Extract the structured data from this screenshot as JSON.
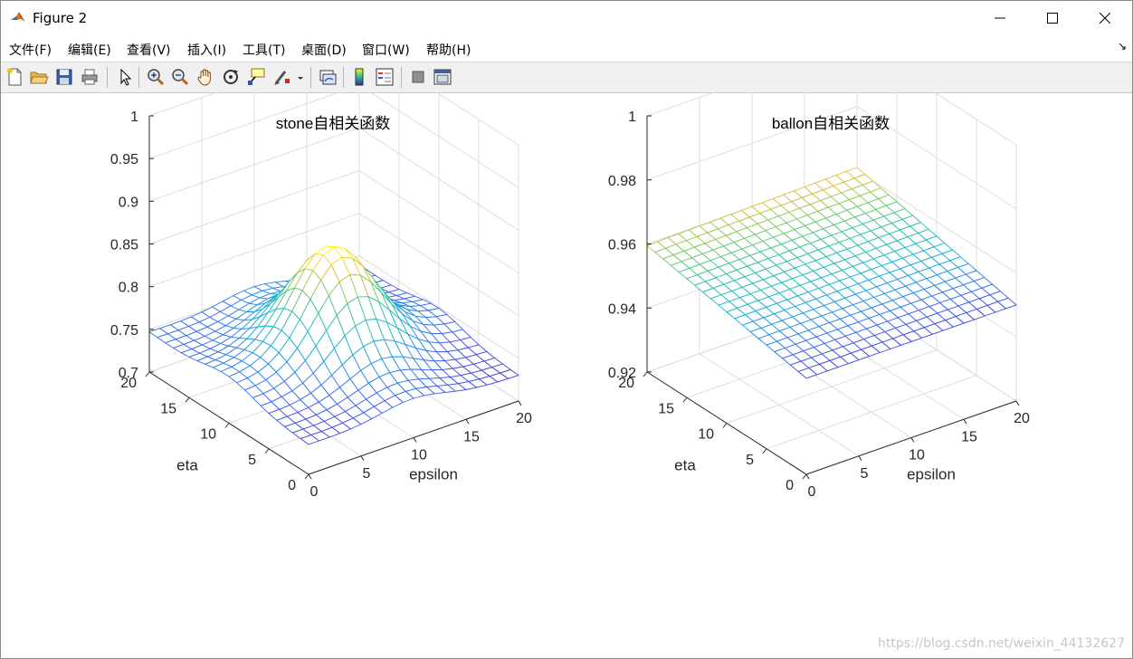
{
  "window": {
    "title": "Figure 2",
    "icon": "matlab-logo-icon",
    "controls": [
      "minimize-icon",
      "maximize-icon",
      "close-icon"
    ]
  },
  "menu": [
    "文件(F)",
    "编辑(E)",
    "查看(V)",
    "插入(I)",
    "工具(T)",
    "桌面(D)",
    "窗口(W)",
    "帮助(H)"
  ],
  "menu_dock_arrow": "↘",
  "toolbar": [
    "new-figure-icon",
    "open-file-icon",
    "save-icon",
    "print-icon",
    "edit-plot-arrow-icon",
    "zoom-in-icon",
    "zoom-out-icon",
    "pan-hand-icon",
    "rotate-3d-icon",
    "data-cursor-icon",
    "brush-icon",
    "brush-dropdown-icon",
    "link-plot-icon",
    "insert-colorbar-icon",
    "insert-legend-icon",
    "hide-plot-tools-icon",
    "show-plot-tools-icon"
  ],
  "colors": {
    "surface_low": "#3e26a8",
    "surface_mid": "#2cb8a0",
    "surface_high": "#f9fb0e",
    "grid": "#dcdcdc",
    "axis": "#262626"
  },
  "chart_data": [
    {
      "type": "surface",
      "title": "stone自相关函数",
      "xlabel": "epsilon",
      "ylabel": "eta",
      "x_ticks": [
        "0",
        "5",
        "10",
        "15",
        "20"
      ],
      "y_ticks": [
        "0",
        "5",
        "10",
        "15",
        "20"
      ],
      "z_ticks": [
        "0.7",
        "0.75",
        "0.8",
        "0.85",
        "0.9",
        "0.95",
        "1"
      ],
      "xlim": [
        0,
        20
      ],
      "ylim": [
        0,
        20
      ],
      "zlim": [
        0.7,
        1.0
      ],
      "grid": true,
      "colormap": "parula",
      "surface_model": {
        "peak_at": [
          10,
          10
        ],
        "peak_value": 0.855,
        "corner_value_x0_y20": 0.747,
        "edge_values_at_centerline": 0.77,
        "corner_value_x20_y0": 0.73,
        "corner_value_x20_y20": 0.74,
        "corner_value_x0_y0": 0.735
      }
    },
    {
      "type": "surface",
      "title": "ballon自相关函数",
      "xlabel": "epsilon",
      "ylabel": "eta",
      "x_ticks": [
        "0",
        "5",
        "10",
        "15",
        "20"
      ],
      "y_ticks": [
        "0",
        "5",
        "10",
        "15",
        "20"
      ],
      "z_ticks": [
        "0.92",
        "0.94",
        "0.96",
        "0.98",
        "1"
      ],
      "xlim": [
        0,
        20
      ],
      "ylim": [
        0,
        20
      ],
      "zlim": [
        0.92,
        1.0
      ],
      "grid": true,
      "colormap": "parula",
      "surface_model": {
        "corner_value_x0_y20": 0.9595,
        "corner_value_x20_y20": 0.961,
        "corner_value_x20_y0": 0.95,
        "corner_value_x0_y0": 0.95
      }
    }
  ],
  "watermark": "https://blog.csdn.net/weixin_44132627"
}
